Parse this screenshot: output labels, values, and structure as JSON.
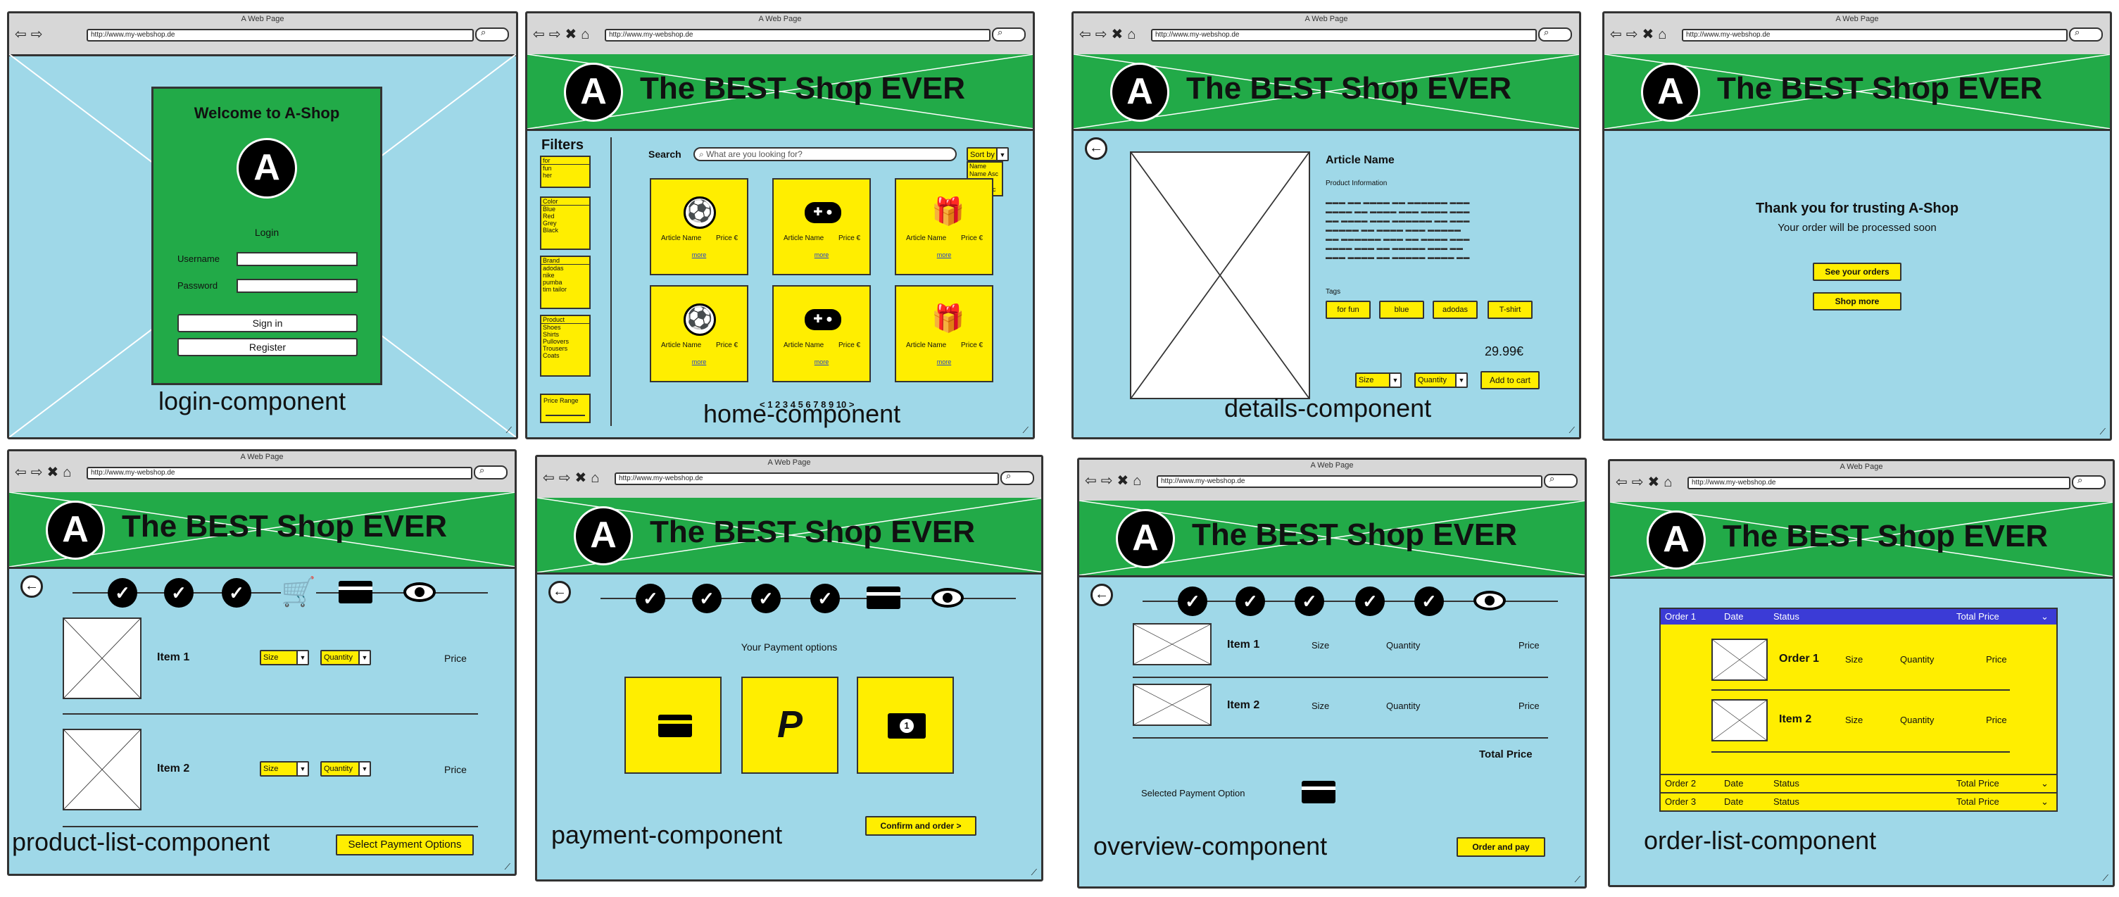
{
  "browser": {
    "title": "A Web Page",
    "url1": "http://www.my-webshop.de",
    "url2": "http://www.my-webshop.de",
    "url3": "http://www.my-webshop.de"
  },
  "shop": {
    "logo_letter": "A",
    "title": "The BEST Shop EVER"
  },
  "login": {
    "caption": "login-component",
    "welcome": "Welcome to A-Shop",
    "login_label": "Login",
    "username_label": "Username",
    "password_label": "Password",
    "signin": "Sign in",
    "register": "Register"
  },
  "home": {
    "caption": "home-component",
    "filters_title": "Filters",
    "search_label": "Search",
    "search_placeholder": "What are you looking for?",
    "sort_label": "Sort by",
    "sort_options": [
      "Name",
      "Name Asc",
      "Price",
      "Price Asc"
    ],
    "filter_groups": [
      {
        "label": "for",
        "options": [
          "fun",
          "her"
        ]
      },
      {
        "label": "Color",
        "options": [
          "Blue",
          "Red",
          "Grey",
          "Black"
        ]
      },
      {
        "label": "Brand",
        "options": [
          "adodas",
          "nike",
          "pumba",
          "tim tailor"
        ]
      },
      {
        "label": "Product",
        "options": [
          "Shoes",
          "Shirts",
          "Pullovers",
          "Trousers",
          "Coats"
        ]
      }
    ],
    "price_range": "Price Range",
    "article_name": "Article Name",
    "price": "Price €",
    "more": "more",
    "pagination": "< 1 2 3 4 5 6 7 8 9 10 >"
  },
  "details": {
    "caption": "details-component",
    "article_name": "Article Name",
    "product_info": "Product Information",
    "tags_label": "Tags",
    "tags": [
      "for fun",
      "blue",
      "adodas",
      "T-shirt"
    ],
    "price": "29.99€",
    "size": "Size",
    "quantity": "Quantity",
    "add_to_cart": "Add to cart"
  },
  "thanks": {
    "caption": "",
    "heading": "Thank you for trusting A-Shop",
    "sub": "Your order will be processed soon",
    "see_orders": "See your orders",
    "shop_more": "Shop more"
  },
  "product_list": {
    "caption": "product-list-component",
    "items": [
      "Item 1",
      "Item 2"
    ],
    "size": "Size",
    "quantity": "Quantity",
    "price": "Price",
    "select_payment": "Select Payment Options"
  },
  "payment": {
    "caption": "payment-component",
    "heading": "Your Payment options",
    "confirm": "Confirm and order >"
  },
  "overview": {
    "caption": "overview-component",
    "items": [
      "Item 1",
      "Item 2"
    ],
    "size": "Size",
    "quantity": "Quantity",
    "price": "Price",
    "total": "Total Price",
    "selected_payment": "Selected Payment Option",
    "order_pay": "Order and pay"
  },
  "order_list": {
    "caption": "order-list-component",
    "head": {
      "order": "Order 1",
      "date": "Date",
      "status": "Status",
      "total": "Total Price"
    },
    "items": [
      "Order 1",
      "Item 2"
    ],
    "size": "Size",
    "quantity": "Quantity",
    "price": "Price",
    "rows": [
      {
        "order": "Order 2",
        "date": "Date",
        "status": "Status",
        "total": "Total Price"
      },
      {
        "order": "Order 3",
        "date": "Date",
        "status": "Status",
        "total": "Total Price"
      }
    ]
  },
  "colors": {
    "bg": "#9fd8e8",
    "header": "#22aa48",
    "accent": "#ffee00",
    "selected_row": "#3b3bd6"
  }
}
